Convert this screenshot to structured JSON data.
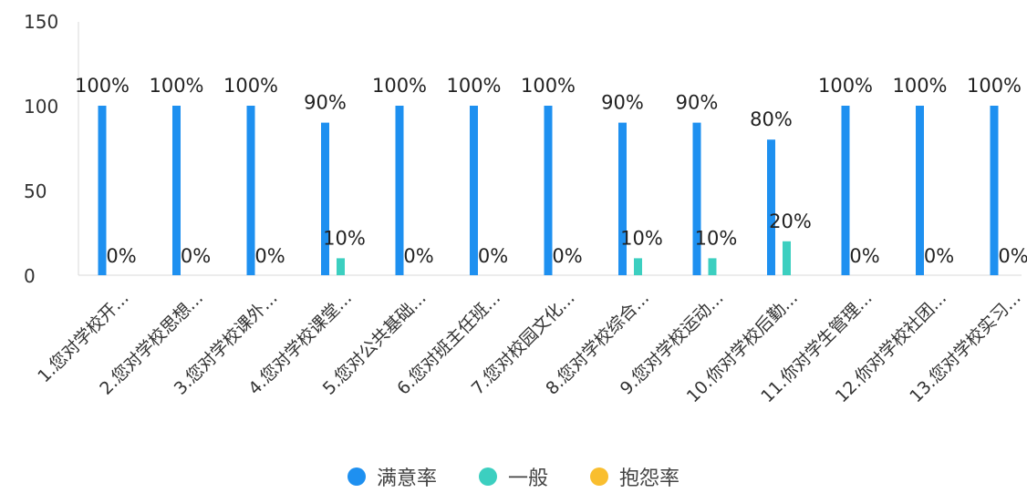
{
  "chart_data": {
    "type": "bar",
    "categories": [
      "1.您对学校开...",
      "2.您对学校思想...",
      "3.您对学校课外...",
      "4.您对学校课堂...",
      "5.您对公共基础...",
      "6.您对班主任班...",
      "7.您对校园文化...",
      "8.您对学校综合...",
      "9.您对学校运动...",
      "10.你对学校后勤...",
      "11.你对学生管理...",
      "12.你对学校社团...",
      "13.您对学校实习..."
    ],
    "series": [
      {
        "name": "满意率",
        "color": "#1E90F0",
        "values": [
          100,
          100,
          100,
          90,
          100,
          100,
          100,
          90,
          90,
          80,
          100,
          100,
          100
        ],
        "labels": [
          "100%",
          "100%",
          "100%",
          "90%",
          "100%",
          "100%",
          "100%",
          "90%",
          "90%",
          "80%",
          "100%",
          "100%",
          "100%"
        ]
      },
      {
        "name": "一般",
        "color": "#3CCFC0",
        "values": [
          0,
          0,
          0,
          10,
          0,
          0,
          0,
          10,
          10,
          20,
          0,
          0,
          0
        ],
        "labels": [
          "0%",
          "0%",
          "0%",
          "10%",
          "0%",
          "0%",
          "0%",
          "10%",
          "10%",
          "20%",
          "0%",
          "0%",
          "0%"
        ]
      },
      {
        "name": "抱怨率",
        "color": "#F9BE2F",
        "values": [
          0,
          0,
          0,
          0,
          0,
          0,
          0,
          0,
          0,
          0,
          0,
          0,
          0
        ],
        "labels": []
      }
    ],
    "yticks": [
      "0",
      "50",
      "100",
      "150"
    ],
    "ylim": [
      0,
      150
    ],
    "grid": false,
    "legend": "bottom",
    "title": "",
    "xlabel": "",
    "ylabel": ""
  }
}
